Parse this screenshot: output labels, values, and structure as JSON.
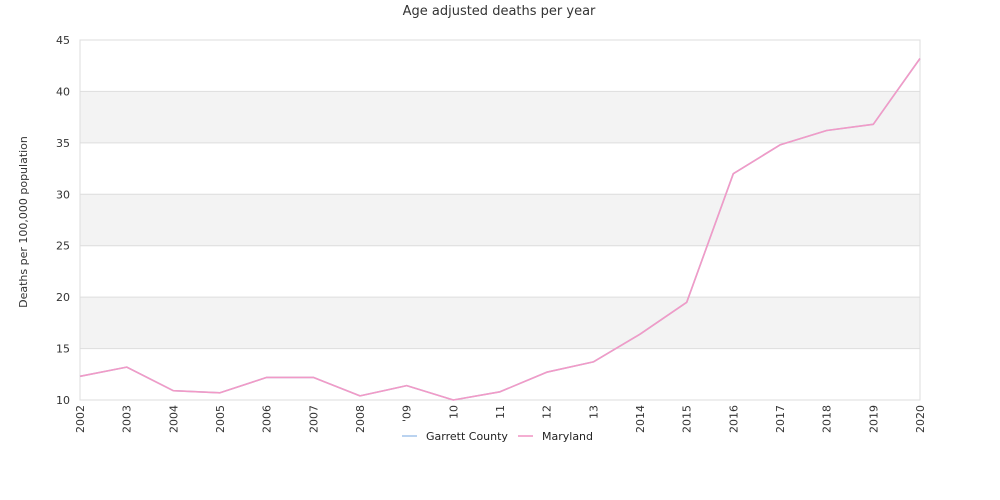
{
  "chart_data": {
    "type": "line",
    "title": "Age adjusted deaths per year",
    "xlabel": "",
    "ylabel": "Deaths per 100,000 population",
    "x": [
      "2002",
      "2003",
      "2004",
      "2005",
      "2006",
      "2007",
      "2008",
      "2009",
      "2010",
      "2011",
      "2012",
      "2013",
      "2014",
      "2015",
      "2016",
      "2017",
      "2018",
      "2019",
      "2020"
    ],
    "x_tick_labels": [
      "2002",
      "2003",
      "2004",
      "2005",
      "2006",
      "2007",
      "2008",
      "'09",
      "10",
      "11",
      "12",
      "13",
      "2014",
      "2015",
      "2016",
      "2017",
      "2018",
      "2019",
      "2020"
    ],
    "ylim": [
      10,
      45
    ],
    "y_ticks": [
      10,
      15,
      20,
      25,
      30,
      35,
      40,
      45
    ],
    "grid": true,
    "legend_position": "bottom-center",
    "series": [
      {
        "name": "Garrett County",
        "color": "#a8c8ec",
        "values": [
          12.3,
          13.2,
          10.9,
          10.7,
          12.2,
          12.2,
          10.4,
          11.4,
          10.0,
          10.8,
          12.7,
          13.7,
          16.4,
          19.5,
          32.0,
          34.8,
          36.2,
          36.8,
          43.2
        ]
      },
      {
        "name": "Maryland",
        "color": "#f29ac6",
        "values": [
          12.3,
          13.2,
          10.9,
          10.7,
          12.2,
          12.2,
          10.4,
          11.4,
          10.0,
          10.8,
          12.7,
          13.7,
          16.4,
          19.5,
          32.0,
          34.8,
          36.2,
          36.8,
          43.2
        ]
      }
    ]
  }
}
